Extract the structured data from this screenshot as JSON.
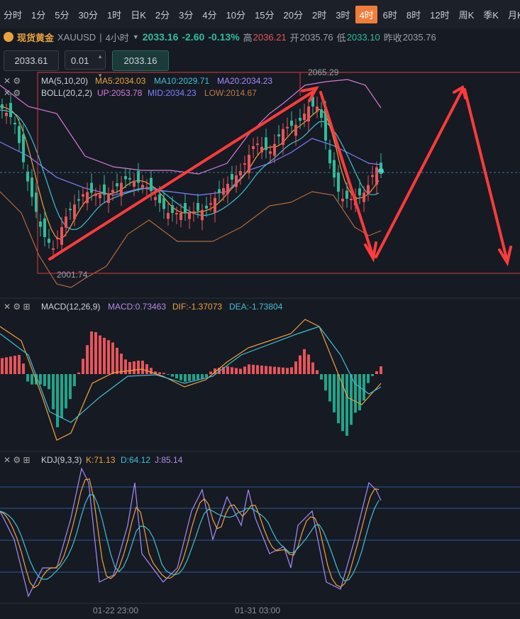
{
  "tabs": [
    "分时",
    "1分",
    "5分",
    "30分",
    "1时",
    "日K",
    "2分",
    "3分",
    "4分",
    "10分",
    "15分",
    "20分",
    "2时",
    "3时",
    "4时",
    "6时",
    "8时",
    "12时",
    "周K",
    "季K",
    "月K"
  ],
  "active_tab_index": 14,
  "symbol": {
    "name": "现货黄金",
    "code": "XAUUSD",
    "period": "4小时",
    "price": "2033.16",
    "change": "-2.60",
    "change_pct": "-0.13%",
    "high_label": "高",
    "high": "2036.21",
    "open_label": "开",
    "open": "2035.76",
    "low_label": "低",
    "low": "2033.10",
    "prev_label": "昨收",
    "prev": "2035.76"
  },
  "inputs": {
    "price_a": "2033.61",
    "step": "0.01",
    "price_b": "2033.16"
  },
  "main": {
    "ma_label": "MA(5,10,20)",
    "ma5": "MA5:2034.03",
    "ma10": "MA10:2029.71",
    "ma20": "MA20:2034.23",
    "boll_label": "BOLL(20,2,2)",
    "up": "UP:2053.78",
    "mid": "MID:2034.23",
    "low": "LOW:2014.67",
    "max_price": "2065.29",
    "min_price": "2001.74"
  },
  "macd": {
    "label": "MACD(12,26,9)",
    "macd": "MACD:0.73463",
    "dif": "DIF:-1.37073",
    "dea": "DEA:-1.73804"
  },
  "kdj": {
    "label": "KDJ(9,3,3)",
    "k": "K:71.13",
    "d": "D:64.12",
    "j": "J:85.14"
  },
  "dates": [
    "01-22 23:00",
    "01-31 03:00"
  ]
}
